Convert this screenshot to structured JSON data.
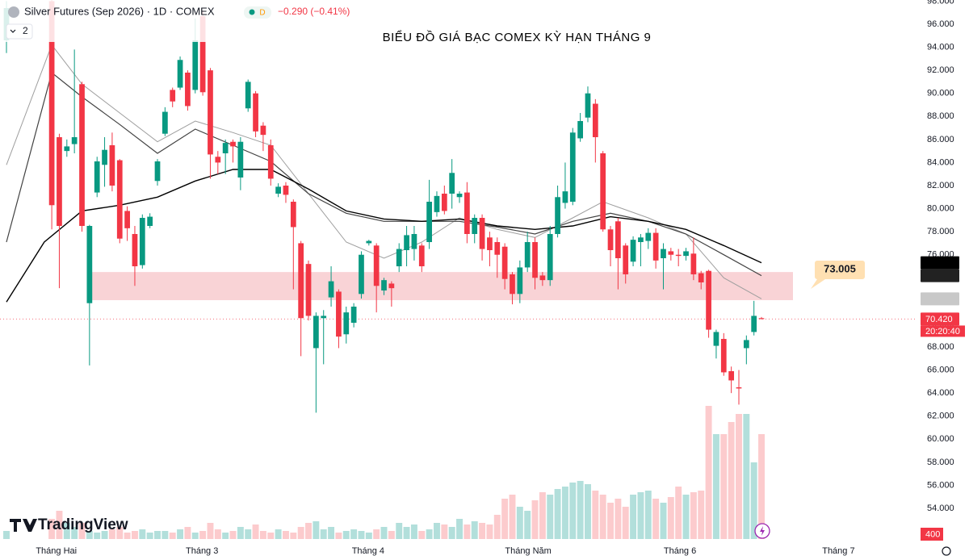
{
  "chart_data": {
    "type": "candlestick",
    "title": "BIỂU ĐỒ GIÁ BẠC COMEX KỲ HẠN THÁNG 9",
    "header": {
      "symbol": "Silver Futures (Sep 2026) · 1D · COMEX",
      "interval_badge": "D",
      "change": "−0.290 (−0.41%)",
      "indicators_count": "2",
      "countdown": "20:20:40"
    },
    "brand": "TradingView",
    "up_color": "#089981",
    "down_color": "#f23645",
    "grid": false,
    "xlim": [
      -0.856,
      120.53
    ],
    "ylim": [
      51.34,
      98.1
    ],
    "xticks": [
      {
        "value": 6.6,
        "label": "Tháng Hai"
      },
      {
        "value": 25.9,
        "label": "Tháng 3"
      },
      {
        "value": 47.9,
        "label": "Tháng 4"
      },
      {
        "value": 69.1,
        "label": "Tháng Năm"
      },
      {
        "value": 89.2,
        "label": "Tháng 6"
      },
      {
        "value": 110.2,
        "label": "Tháng 7"
      }
    ],
    "yticks": [
      {
        "value": 54,
        "label": "54.000"
      },
      {
        "value": 56,
        "label": "56.000"
      },
      {
        "value": 58,
        "label": "58.000"
      },
      {
        "value": 60,
        "label": "60.000"
      },
      {
        "value": 62,
        "label": "62.000"
      },
      {
        "value": 64,
        "label": "64.000"
      },
      {
        "value": 66,
        "label": "66.000"
      },
      {
        "value": 68,
        "label": "68.000"
      },
      {
        "value": 70,
        "label": "70.000"
      },
      {
        "value": 72,
        "label": "72.000"
      },
      {
        "value": 74,
        "label": "74.000"
      },
      {
        "value": 76,
        "label": "76.000"
      },
      {
        "value": 78,
        "label": "78.000"
      },
      {
        "value": 80,
        "label": "80.000"
      },
      {
        "value": 82,
        "label": "82.000"
      },
      {
        "value": 84,
        "label": "84.000"
      },
      {
        "value": 86,
        "label": "86.000"
      },
      {
        "value": 88,
        "label": "88.000"
      },
      {
        "value": 90,
        "label": "90.000"
      },
      {
        "value": 92,
        "label": "92.000"
      },
      {
        "value": 94,
        "label": "94.000"
      },
      {
        "value": 96,
        "label": "96.000"
      },
      {
        "value": 98,
        "label": "98.000"
      }
    ],
    "x": [
      0,
      6,
      7,
      8,
      9,
      10,
      11,
      12,
      13,
      14,
      15,
      16,
      17,
      18,
      19,
      20,
      21,
      22,
      23,
      24,
      25,
      26,
      27,
      28,
      29,
      30,
      31,
      32,
      33,
      34,
      35,
      36,
      37,
      38,
      39,
      40,
      41,
      42,
      43,
      44,
      45,
      46,
      47,
      48,
      49,
      50,
      51,
      52,
      53,
      54,
      55,
      56,
      57,
      58,
      59,
      60,
      61,
      62,
      63,
      64,
      65,
      66,
      67,
      68,
      69,
      70,
      71,
      72,
      73,
      74,
      75,
      76,
      77,
      78,
      79,
      80,
      81,
      82,
      83,
      84,
      85,
      86,
      87,
      88,
      89,
      90,
      91,
      92,
      93,
      94,
      95,
      96,
      97,
      98,
      99,
      100
    ],
    "open": [
      94.6,
      98,
      86.2,
      85,
      85.6,
      90.8,
      71.8,
      81.4,
      83.8,
      85.5,
      84.2,
      79.8,
      77.8,
      75.1,
      78.5,
      82.4,
      86.5,
      90.3,
      90.5,
      91.8,
      90.3,
      96.7,
      92,
      84.5,
      84.8,
      85.8,
      82.7,
      88.7,
      90,
      87.2,
      85.5,
      81.3,
      82,
      80.6,
      77,
      75.2,
      67.9,
      70.5,
      72.3,
      72.8,
      69.1,
      70.1,
      72.6,
      77,
      76.8,
      72.9,
      73.5,
      75,
      76.4,
      76.5,
      76.8,
      77.1,
      79.7,
      81.3,
      81.3,
      81,
      81.4,
      77.8,
      79.2,
      77.5,
      77.1,
      76.7,
      74.3,
      72.6,
      74.9,
      77.1,
      74.2,
      73.8,
      77.8,
      80.5,
      80.6,
      86.1,
      87.9,
      89.1,
      84.8,
      78.2,
      78.9,
      76.8,
      75.4,
      77.1,
      77.2,
      77.9,
      75.7,
      76.3,
      76,
      75.9,
      76.1,
      74.4,
      74.6,
      68.1,
      68.7,
      65.9,
      64.5,
      67.9,
      69.3,
      70.5
    ],
    "high": [
      98,
      98.5,
      86.5,
      86,
      93.8,
      91,
      78.6,
      84.5,
      86.2,
      86.6,
      84.3,
      80.2,
      78.5,
      79.5,
      79.6,
      84.3,
      88.8,
      90.5,
      93.2,
      92,
      96.5,
      97.2,
      92.2,
      85,
      86,
      86,
      86.2,
      91.2,
      90.2,
      87.5,
      86,
      82.2,
      82.3,
      80.8,
      77.2,
      75.5,
      71,
      71.2,
      75,
      73,
      71.5,
      71.8,
      76.3,
      77.3,
      77,
      74,
      73.7,
      77,
      78.5,
      78.5,
      77,
      82.5,
      81.5,
      82,
      84.3,
      81.5,
      82.3,
      79.5,
      79.5,
      78,
      77.5,
      77,
      74.5,
      75.5,
      78,
      77.5,
      74.5,
      78.5,
      82,
      84,
      87,
      88.3,
      90.6,
      89.5,
      85,
      78.5,
      79.2,
      77,
      77.6,
      77.8,
      78.3,
      78.3,
      77,
      76.6,
      76.5,
      76.6,
      77.5,
      74.6,
      74.7,
      69.5,
      69.2,
      66.3,
      66,
      69,
      72,
      70.6
    ],
    "low": [
      93.5,
      78.2,
      73.1,
      84.5,
      84.8,
      78,
      66.4,
      81,
      81.9,
      81.5,
      77,
      77.2,
      73.3,
      74.8,
      78.3,
      82,
      86.3,
      88.8,
      90.3,
      88.5,
      90,
      89.8,
      82.6,
      83,
      83,
      84,
      81.6,
      88.4,
      86.2,
      85,
      82,
      81,
      80.5,
      73,
      67.2,
      70.3,
      62.3,
      66.5,
      71.5,
      67.9,
      68.3,
      69.7,
      72.2,
      76.8,
      71,
      72.5,
      71.5,
      74.5,
      75,
      75.5,
      74.5,
      76.5,
      79.3,
      79.5,
      80,
      80.5,
      77,
      77,
      75.5,
      75,
      74,
      73,
      71.7,
      71.8,
      74.5,
      73,
      73.3,
      73.3,
      77.5,
      80,
      80.3,
      85.8,
      87.5,
      84,
      78,
      75,
      73,
      73.5,
      75,
      75,
      76.5,
      74.8,
      73,
      75.5,
      75,
      75.5,
      73.8,
      73,
      68.8,
      67,
      65.5,
      64,
      63,
      66.5,
      69,
      70.4
    ],
    "close": [
      97.4,
      80.3,
      78.5,
      85.4,
      86.2,
      78.5,
      78.5,
      84.1,
      85.1,
      82,
      77.4,
      78.3,
      75,
      79.2,
      79.3,
      84.1,
      88.4,
      89.3,
      92.9,
      88.9,
      94.6,
      90.1,
      84.7,
      84,
      85.7,
      85.4,
      85.8,
      91,
      86.7,
      86.4,
      82.6,
      81.9,
      81.2,
      78.4,
      70.5,
      70.7,
      70.7,
      70.7,
      73.7,
      68.9,
      71,
      71.5,
      76,
      77.2,
      73.3,
      73.8,
      73.1,
      76.5,
      77.7,
      77.8,
      75,
      80.6,
      81.1,
      79.8,
      83.1,
      81.3,
      77.8,
      79.2,
      76.5,
      76.4,
      76,
      73.9,
      72.6,
      74.9,
      77.1,
      74,
      73.8,
      77.8,
      81,
      81.5,
      86.6,
      87.6,
      90,
      86.2,
      78.2,
      76.4,
      75.7,
      74.3,
      77.3,
      77.5,
      77.9,
      75.5,
      76.5,
      76,
      75.9,
      76.3,
      74.3,
      73.6,
      69.5,
      69.3,
      65.8,
      65.1,
      64.4,
      68.6,
      70.7,
      70.42
    ],
    "volume": {
      "ylim": [
        0,
        668
      ],
      "badge": 400,
      "up_color": "#b2dfdb",
      "down_color": "#fccbcd",
      "values": [
        10,
        25,
        35,
        20,
        15,
        20,
        10,
        8,
        10,
        12,
        15,
        8,
        10,
        12,
        8,
        10,
        10,
        8,
        12,
        15,
        8,
        10,
        20,
        12,
        8,
        10,
        15,
        12,
        18,
        10,
        8,
        12,
        10,
        8,
        15,
        20,
        22,
        12,
        15,
        8,
        10,
        12,
        10,
        8,
        12,
        15,
        10,
        20,
        15,
        18,
        10,
        12,
        20,
        18,
        15,
        25,
        18,
        22,
        20,
        18,
        30,
        50,
        55,
        40,
        35,
        48,
        58,
        55,
        62,
        65,
        70,
        72,
        68,
        60,
        55,
        45,
        50,
        40,
        55,
        58,
        60,
        50,
        45,
        52,
        65,
        55,
        58,
        60,
        165,
        130,
        130,
        145,
        155,
        155,
        95,
        130
      ]
    },
    "series": [
      {
        "color": "#9e9e9e",
        "width": 1,
        "x": [
          0,
          6,
          10,
          15,
          20,
          25,
          30,
          35,
          40,
          45,
          50,
          55,
          60,
          65,
          70,
          75,
          79,
          85,
          90,
          95,
          100
        ],
        "values": [
          83.8,
          94.2,
          90.8,
          88.3,
          85.8,
          87.6,
          86.6,
          85.5,
          81.3,
          77.1,
          75.7,
          77.1,
          79.2,
          78.2,
          77.5,
          79.2,
          80.6,
          79.2,
          77.8,
          74,
          72.176
        ]
      },
      {
        "color": "#424242",
        "width": 1.2,
        "x": [
          0,
          6,
          10,
          15,
          20,
          25,
          30,
          35,
          40,
          45,
          50,
          55,
          60,
          65,
          70,
          75,
          80,
          85,
          90,
          95,
          100
        ],
        "values": [
          77.1,
          91.8,
          89.7,
          87.3,
          84.8,
          86.9,
          85.5,
          84.1,
          81.3,
          79.6,
          78.9,
          78.9,
          78.9,
          78.4,
          77.8,
          78.9,
          79.6,
          78.9,
          77.8,
          76,
          74.188
        ]
      },
      {
        "color": "#000000",
        "width": 1.4,
        "x": [
          0,
          5,
          10,
          15,
          20,
          25,
          30,
          35,
          40,
          45,
          50,
          55,
          60,
          65,
          70,
          75,
          80,
          85,
          90,
          95,
          100
        ],
        "values": [
          71.9,
          77.1,
          79.8,
          80.3,
          81,
          82.4,
          83.4,
          83.4,
          81.7,
          79.8,
          79.1,
          78.9,
          79.1,
          78.5,
          78.2,
          78.5,
          79.3,
          78.9,
          78.2,
          76.8,
          75.308
        ]
      }
    ],
    "zone": {
      "range": [
        72.06,
        74.5
      ],
      "color": "#f9d3d6",
      "label": 73.005
    },
    "price_labels": [
      {
        "value": 75.308,
        "color": "#000000"
      },
      {
        "value": 74.188,
        "color": "#222222"
      },
      {
        "value": 72.176,
        "color": "#c8c8c8"
      },
      {
        "value": 70.42,
        "label": "70.420",
        "color": "#f23645"
      }
    ]
  }
}
